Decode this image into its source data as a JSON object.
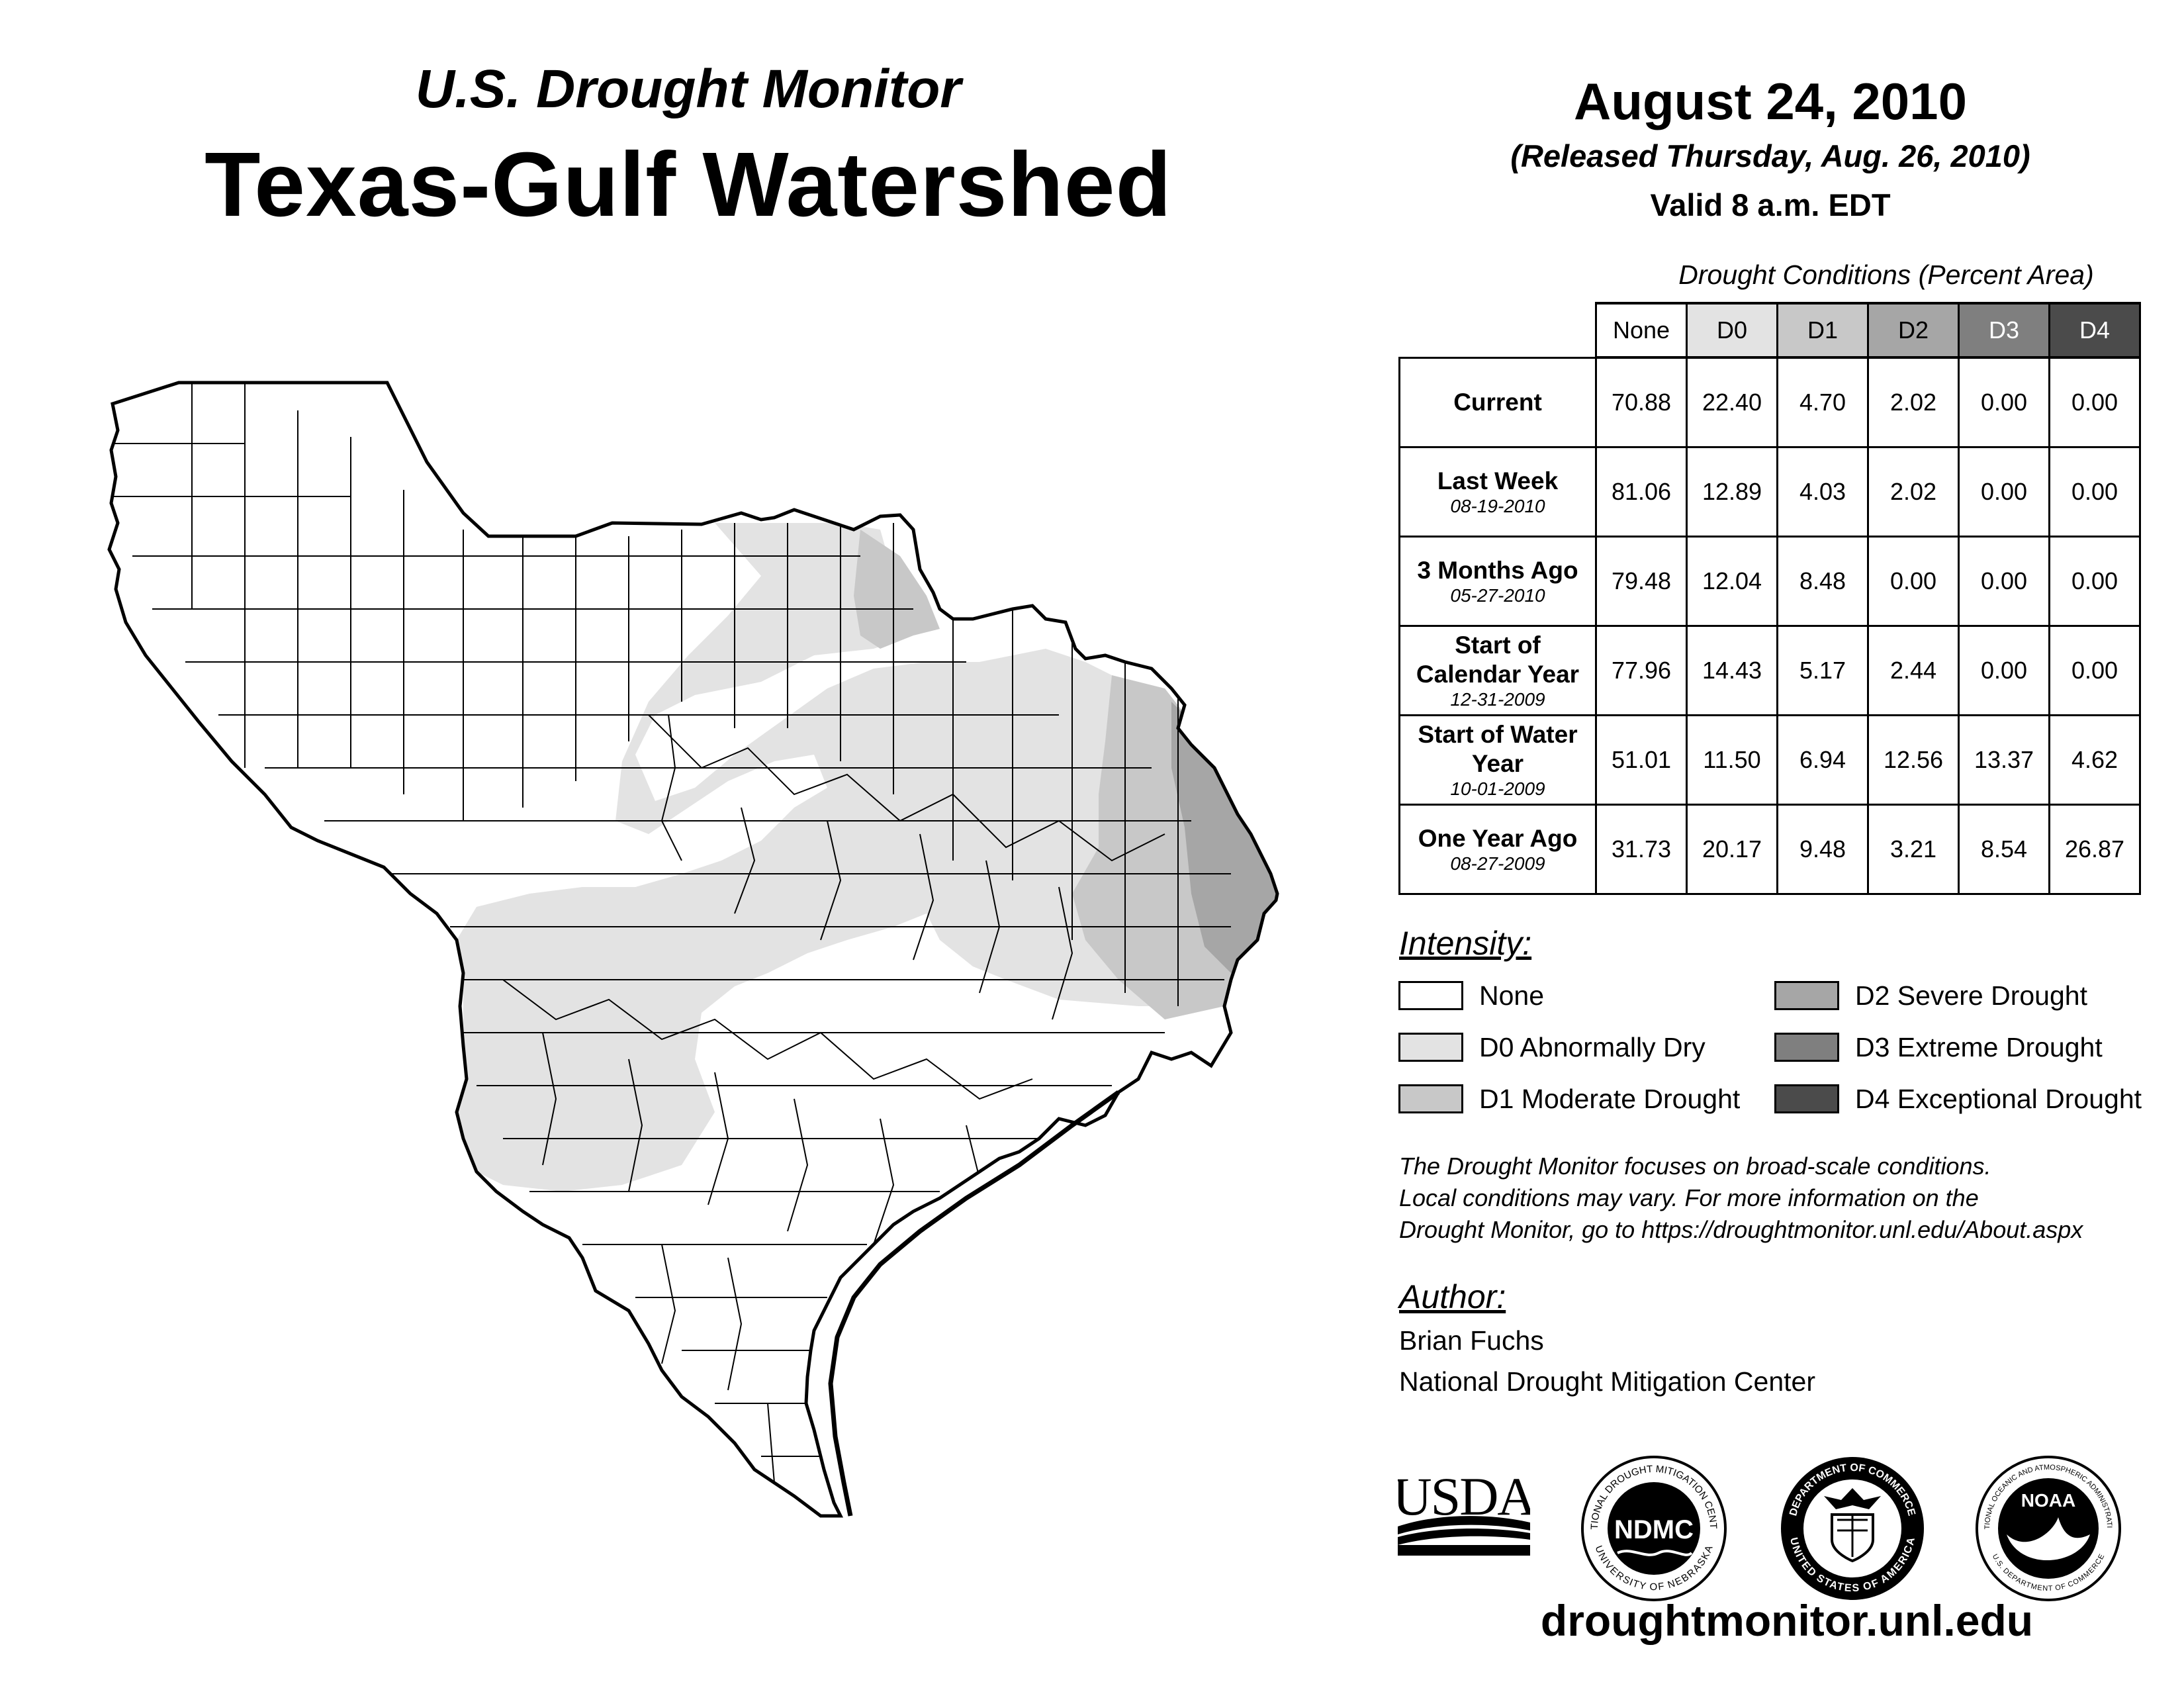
{
  "header": {
    "subtitle": "U.S. Drought Monitor",
    "title": "Texas-Gulf Watershed",
    "date": "August 24, 2010",
    "released": "(Released Thursday, Aug. 26, 2010)",
    "valid": "Valid 8 a.m. EDT"
  },
  "table": {
    "caption": "Drought Conditions (Percent Area)",
    "columns": [
      "None",
      "D0",
      "D1",
      "D2",
      "D3",
      "D4"
    ],
    "column_colors": [
      "#ffffff",
      "#e3e3e3",
      "#c8c8c8",
      "#a6a6a6",
      "#7f7f7f",
      "#4b4b4b"
    ],
    "rows": [
      {
        "label": "Current",
        "date": "",
        "values": [
          "70.88",
          "22.40",
          "4.70",
          "2.02",
          "0.00",
          "0.00"
        ]
      },
      {
        "label": "Last Week",
        "date": "08-19-2010",
        "values": [
          "81.06",
          "12.89",
          "4.03",
          "2.02",
          "0.00",
          "0.00"
        ]
      },
      {
        "label": "3 Months Ago",
        "date": "05-27-2010",
        "values": [
          "79.48",
          "12.04",
          "8.48",
          "0.00",
          "0.00",
          "0.00"
        ]
      },
      {
        "label": "Start of Calendar Year",
        "date": "12-31-2009",
        "values": [
          "77.96",
          "14.43",
          "5.17",
          "2.44",
          "0.00",
          "0.00"
        ]
      },
      {
        "label": "Start of Water Year",
        "date": "10-01-2009",
        "values": [
          "51.01",
          "11.50",
          "6.94",
          "12.56",
          "13.37",
          "4.62"
        ]
      },
      {
        "label": "One Year Ago",
        "date": "08-27-2009",
        "values": [
          "31.73",
          "20.17",
          "9.48",
          "3.21",
          "8.54",
          "26.87"
        ]
      }
    ]
  },
  "legend": {
    "title": "Intensity:",
    "items": [
      {
        "label": "None",
        "color": "#ffffff"
      },
      {
        "label": "D0 Abnormally Dry",
        "color": "#e3e3e3"
      },
      {
        "label": "D1 Moderate Drought",
        "color": "#c8c8c8"
      },
      {
        "label": "D2 Severe Drought",
        "color": "#a6a6a6"
      },
      {
        "label": "D3 Extreme Drought",
        "color": "#7f7f7f"
      },
      {
        "label": "D4 Exceptional Drought",
        "color": "#4b4b4b"
      }
    ]
  },
  "note": {
    "line1": "The Drought Monitor focuses on broad-scale conditions.",
    "line2": "Local conditions may vary. For more information on the",
    "line3": "Drought Monitor, go to https://droughtmonitor.unl.edu/About.aspx"
  },
  "author": {
    "title": "Author:",
    "name": "Brian Fuchs",
    "org": "National Drought Mitigation Center"
  },
  "logos": {
    "usda": "USDA",
    "ndmc": "NDMC",
    "ndmc_ring_top": "NATIONAL DROUGHT MITIGATION CENTER",
    "ndmc_ring_bottom": "UNIVERSITY OF NEBRASKA",
    "doc_ring_top": "DEPARTMENT OF COMMERCE",
    "doc_ring_bottom": "UNITED STATES OF AMERICA",
    "noaa": "NOAA",
    "noaa_ring_top": "NATIONAL OCEANIC AND ATMOSPHERIC ADMINISTRATION",
    "noaa_ring_bottom": "U.S. DEPARTMENT OF COMMERCE"
  },
  "footer": {
    "url": "droughtmonitor.unl.edu"
  }
}
